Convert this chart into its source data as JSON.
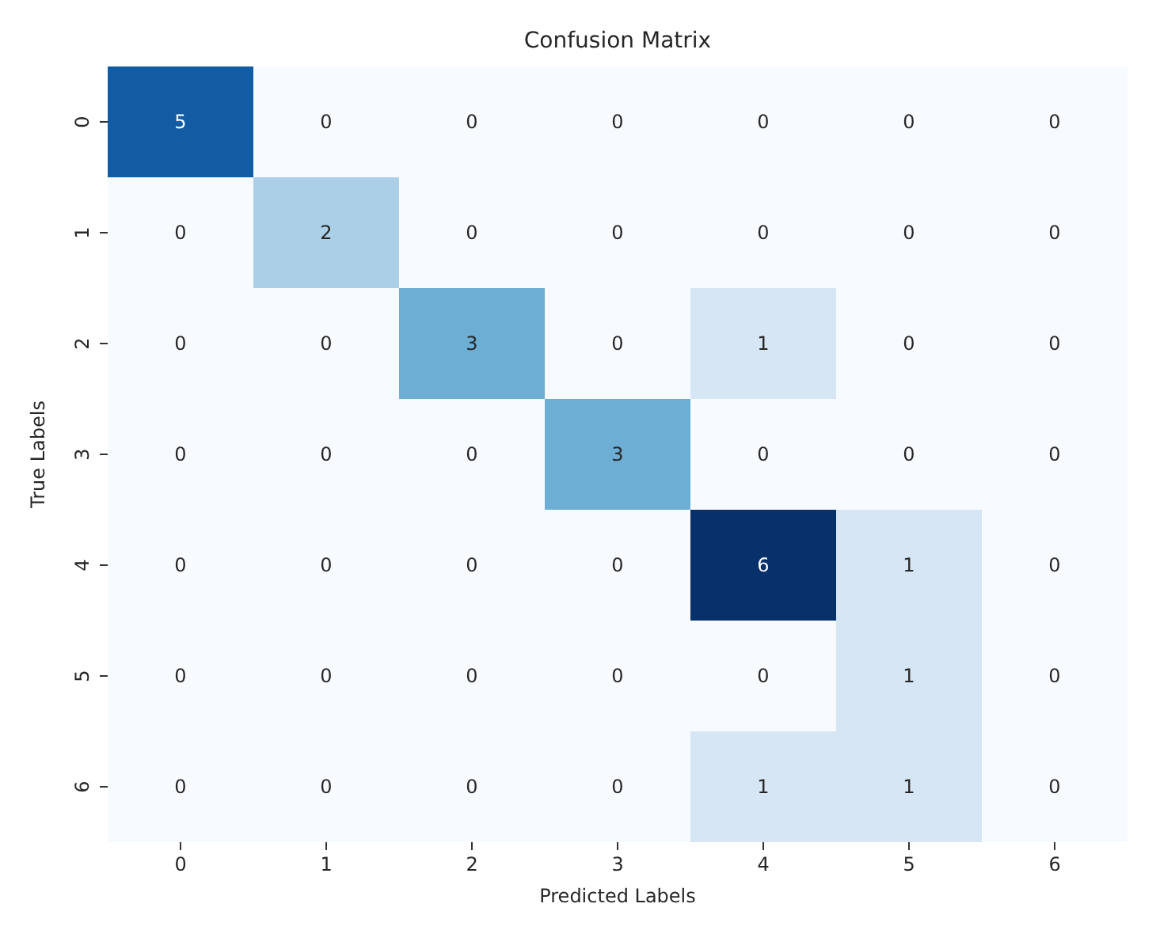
{
  "chart_data": {
    "type": "heatmap",
    "title": "Confusion Matrix",
    "xlabel": "Predicted Labels",
    "ylabel": "True Labels",
    "data_labels": true,
    "categories": [
      "0",
      "1",
      "2",
      "3",
      "4",
      "5",
      "6"
    ],
    "y_categories": [
      "0",
      "1",
      "2",
      "3",
      "4",
      "5",
      "6"
    ],
    "cells": [
      [
        5,
        0,
        0,
        0,
        0,
        0,
        0
      ],
      [
        0,
        2,
        0,
        0,
        0,
        0,
        0
      ],
      [
        0,
        0,
        3,
        0,
        1,
        0,
        0
      ],
      [
        0,
        0,
        0,
        3,
        0,
        0,
        0
      ],
      [
        0,
        0,
        0,
        0,
        6,
        1,
        0
      ],
      [
        0,
        0,
        0,
        0,
        0,
        1,
        0
      ],
      [
        0,
        0,
        0,
        0,
        1,
        1,
        0
      ]
    ]
  }
}
